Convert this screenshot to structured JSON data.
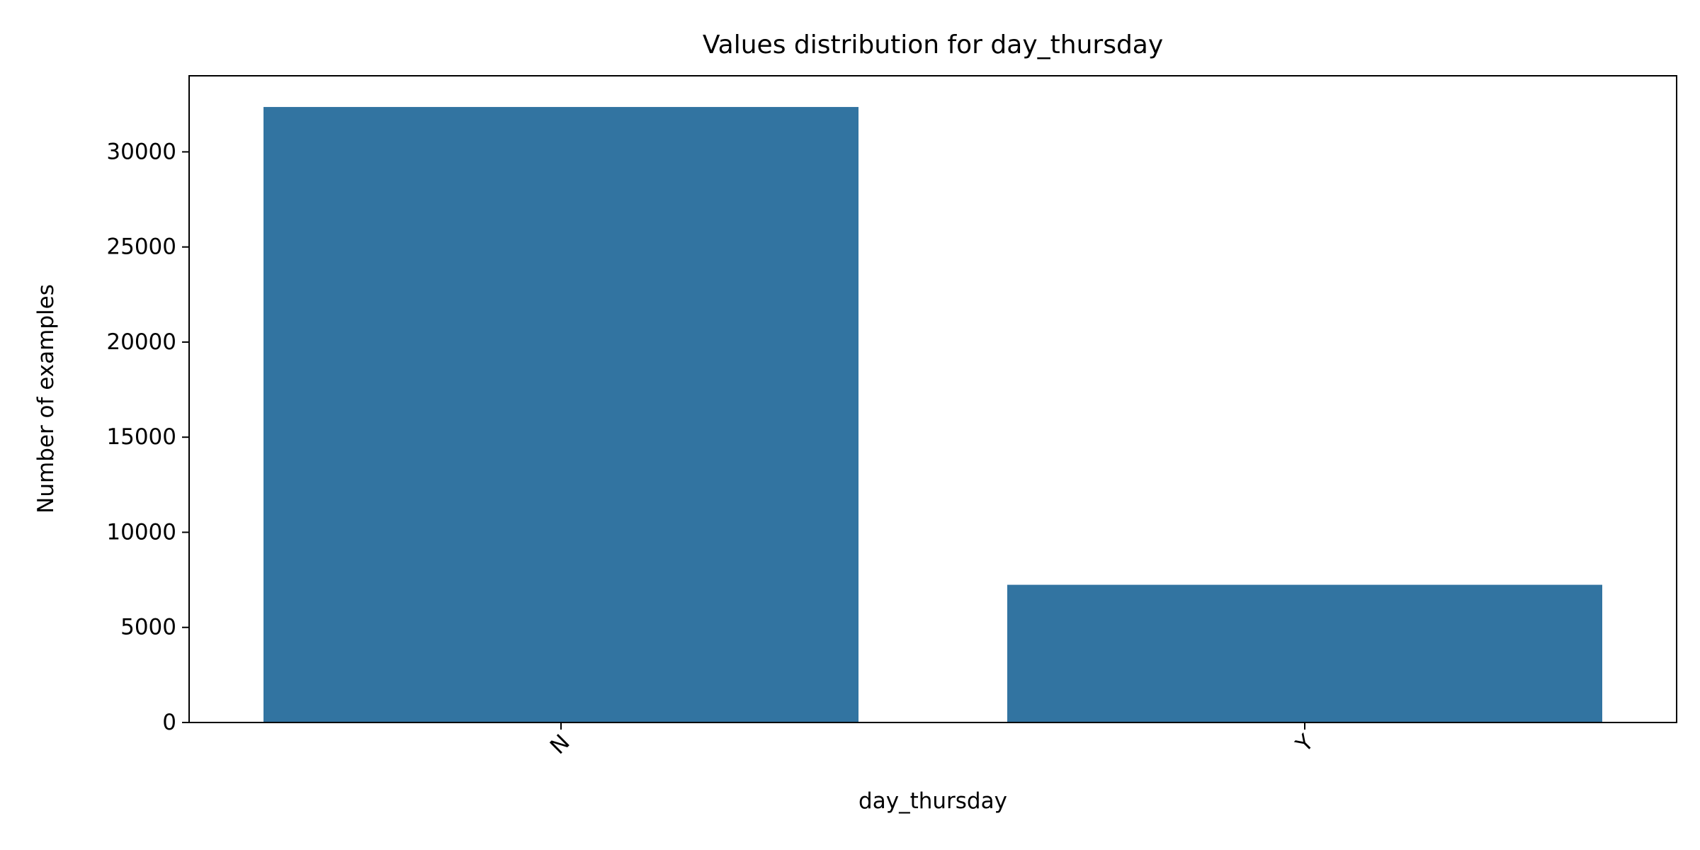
{
  "chart_data": {
    "type": "bar",
    "title": "Values distribution for  day_thursday",
    "xlabel": "day_thursday",
    "ylabel": "Number of examples",
    "categories": [
      "N",
      "Y"
    ],
    "values": [
      32360,
      7240
    ],
    "ylim": [
      0,
      34000
    ],
    "yticks": [
      0,
      5000,
      10000,
      15000,
      20000,
      25000,
      30000
    ],
    "ytick_labels": [
      "0",
      "5000",
      "10000",
      "15000",
      "20000",
      "25000",
      "30000"
    ],
    "bar_color": "#3274a1",
    "grid": false,
    "legend": false
  }
}
